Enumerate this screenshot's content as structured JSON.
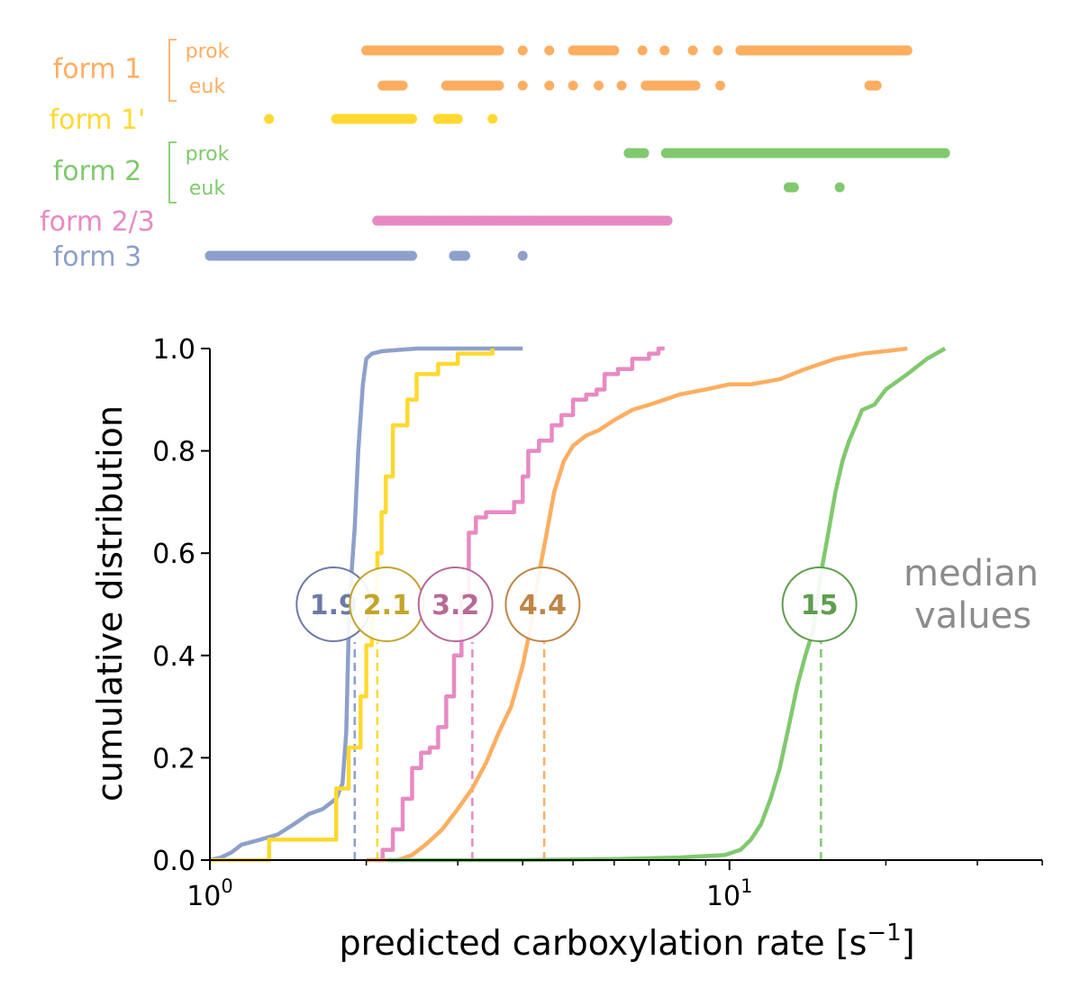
{
  "chart_data": [
    {
      "type": "scatter",
      "panel": "strip",
      "rows": [
        {
          "label": "form 1",
          "sublabel": "prok",
          "color": "#fdae61",
          "x": [
            2.0,
            2.1,
            2.2,
            2.3,
            2.4,
            2.6,
            2.8,
            3.0,
            3.3,
            3.6,
            4.0,
            4.5,
            5.0,
            5.5,
            6.0,
            6.8,
            7.5,
            8.5,
            9.5,
            10.5,
            11.5,
            12.5,
            13.5,
            14.5,
            15.5,
            17.0,
            18.5,
            20.0,
            21.0,
            22.0
          ]
        },
        {
          "label": "",
          "sublabel": "euk",
          "color": "#fdae61",
          "x": [
            2.15,
            2.25,
            2.35,
            2.85,
            3.0,
            3.1,
            3.3,
            3.6,
            4.0,
            4.5,
            5.0,
            5.6,
            6.2,
            6.9,
            7.5,
            8.1,
            8.6,
            9.6,
            18.6,
            19.2
          ]
        },
        {
          "label": "form 1'",
          "sublabel": "",
          "color": "#ffd92f",
          "x": [
            1.3,
            1.75,
            1.82,
            1.88,
            1.94,
            2.0,
            2.06,
            2.12,
            2.18,
            2.23,
            2.35,
            2.45,
            2.75,
            3.0,
            3.5
          ]
        },
        {
          "label": "form 2",
          "sublabel": "prok",
          "color": "#80c96e",
          "x": [
            6.4,
            6.7,
            6.85,
            7.55,
            7.8,
            8.3,
            8.8,
            9.0,
            9.3,
            9.8,
            10.5,
            11.5,
            12.5,
            13.5,
            14.5,
            15.5,
            17.0,
            18.5,
            20.0,
            22.0,
            24.0,
            26.0
          ]
        },
        {
          "label": "",
          "sublabel": "euk",
          "color": "#80c96e",
          "x": [
            13.0,
            13.3,
            16.3
          ]
        },
        {
          "label": "form 2/3",
          "sublabel": "",
          "color": "#e78ac3",
          "x": [
            2.1,
            2.2,
            2.3,
            2.4,
            2.5,
            2.6,
            2.7,
            2.8,
            2.9,
            3.0,
            3.1,
            3.2,
            3.3,
            3.4,
            3.55,
            3.8,
            3.95,
            4.05,
            4.3,
            4.55,
            4.75,
            4.95,
            5.2,
            5.45,
            5.8,
            6.2,
            6.8,
            7.3,
            7.6
          ]
        },
        {
          "label": "form 3",
          "sublabel": "",
          "color": "#8da0cb",
          "x": [
            1.0,
            1.03,
            1.1,
            1.15,
            1.2,
            1.26,
            1.32,
            1.38,
            1.45,
            1.52,
            1.6,
            1.68,
            1.75,
            1.82,
            1.9,
            1.97,
            2.04,
            2.1,
            2.25,
            2.35,
            2.45,
            2.95,
            3.1,
            4.0
          ]
        }
      ]
    },
    {
      "type": "line",
      "panel": "ecdf",
      "xlabel": "predicted carboxylation rate [s",
      "xlabel_sup": "−1",
      "xlabel_close": "]",
      "ylabel": "cumulative distribution",
      "xscale": "log",
      "xlim": [
        1,
        40
      ],
      "ylim": [
        0,
        1
      ],
      "x_major_ticks": [
        {
          "value": 1,
          "base": "10",
          "exp": "0"
        },
        {
          "value": 10,
          "base": "10",
          "exp": "1"
        }
      ],
      "x_minor_ticks": [
        2,
        3,
        4,
        5,
        6,
        7,
        8,
        9,
        20,
        30,
        40
      ],
      "y_ticks": [
        {
          "value": 0,
          "label": "0.0"
        },
        {
          "value": 0.2,
          "label": "0.2"
        },
        {
          "value": 0.4,
          "label": "0.4"
        },
        {
          "value": 0.6,
          "label": "0.6"
        },
        {
          "value": 0.8,
          "label": "0.8"
        },
        {
          "value": 1.0,
          "label": "1.0"
        }
      ],
      "annotation": {
        "line1": "median",
        "line2": "values",
        "color": "#8c8c8c"
      },
      "series": [
        {
          "color": "#8da0cb",
          "median": 1.9,
          "median_label": "1.9",
          "badge_x": 1.73,
          "text_color": "#6c7aa6",
          "step": false,
          "x": [
            1.0,
            1.05,
            1.1,
            1.15,
            1.25,
            1.35,
            1.45,
            1.55,
            1.65,
            1.75,
            1.8,
            1.83,
            1.85,
            1.87,
            1.9,
            1.93,
            1.97,
            2.0,
            2.05,
            2.15,
            2.5,
            3.0,
            4.0
          ],
          "y": [
            0.0,
            0.005,
            0.015,
            0.03,
            0.04,
            0.05,
            0.07,
            0.09,
            0.1,
            0.12,
            0.15,
            0.25,
            0.45,
            0.55,
            0.65,
            0.8,
            0.93,
            0.98,
            0.99,
            0.995,
            1.0,
            1.0,
            1.0
          ]
        },
        {
          "color": "#ffd92f",
          "median": 2.1,
          "median_label": "2.1",
          "badge_x": 2.19,
          "text_color": "#c2a52b",
          "step": true,
          "x": [
            1.0,
            1.3,
            1.75,
            1.85,
            1.95,
            2.0,
            2.05,
            2.1,
            2.14,
            2.18,
            2.25,
            2.4,
            2.5,
            2.75,
            3.0,
            3.5
          ],
          "y": [
            0.0,
            0.04,
            0.14,
            0.22,
            0.32,
            0.42,
            0.52,
            0.6,
            0.68,
            0.75,
            0.85,
            0.9,
            0.95,
            0.97,
            0.99,
            1.0
          ]
        },
        {
          "color": "#e78ac3",
          "median": 3.2,
          "median_label": "3.2",
          "badge_x": 2.97,
          "text_color": "#b66a97",
          "step": true,
          "x": [
            2.07,
            2.15,
            2.25,
            2.35,
            2.45,
            2.55,
            2.65,
            2.75,
            2.85,
            2.95,
            3.05,
            3.15,
            3.25,
            3.4,
            3.6,
            3.85,
            4.0,
            4.1,
            4.3,
            4.55,
            4.75,
            5.0,
            5.3,
            5.55,
            5.75,
            6.1,
            6.5,
            7.0,
            7.3,
            7.5
          ],
          "y": [
            0.0,
            0.02,
            0.06,
            0.12,
            0.18,
            0.21,
            0.22,
            0.26,
            0.32,
            0.4,
            0.52,
            0.64,
            0.67,
            0.68,
            0.68,
            0.7,
            0.75,
            0.8,
            0.82,
            0.85,
            0.87,
            0.9,
            0.91,
            0.92,
            0.95,
            0.96,
            0.98,
            0.99,
            1.0,
            1.0
          ]
        },
        {
          "color": "#fdae61",
          "median": 4.4,
          "median_label": "4.4",
          "badge_x": 4.37,
          "text_color": "#c08545",
          "step": false,
          "x": [
            2.0,
            2.3,
            2.45,
            2.6,
            2.8,
            3.0,
            3.2,
            3.4,
            3.6,
            3.8,
            4.0,
            4.15,
            4.3,
            4.45,
            4.6,
            4.8,
            5.0,
            5.3,
            5.6,
            6.0,
            6.5,
            7.0,
            7.5,
            8.0,
            9.0,
            10.0,
            11.0,
            12.5,
            14.0,
            16.0,
            18.0,
            20.0,
            22.0
          ],
          "y": [
            0.0,
            0.0,
            0.01,
            0.03,
            0.06,
            0.1,
            0.14,
            0.19,
            0.25,
            0.3,
            0.38,
            0.46,
            0.56,
            0.64,
            0.72,
            0.78,
            0.81,
            0.83,
            0.84,
            0.86,
            0.88,
            0.89,
            0.9,
            0.91,
            0.92,
            0.93,
            0.93,
            0.94,
            0.96,
            0.98,
            0.99,
            0.995,
            1.0
          ]
        },
        {
          "color": "#80c96e",
          "median": 15,
          "median_label": "15",
          "badge_x": 14.9,
          "text_color": "#5f9e4f",
          "step": false,
          "x": [
            2.2,
            4.0,
            6.0,
            8.0,
            9.0,
            9.8,
            10.5,
            11.0,
            11.5,
            12.0,
            12.5,
            13.0,
            13.5,
            14.0,
            14.5,
            15.0,
            15.5,
            16.0,
            16.5,
            17.0,
            17.5,
            18.0,
            19.0,
            20.0,
            22.0,
            24.0,
            26.0
          ],
          "y": [
            0.0,
            0.0,
            0.002,
            0.005,
            0.008,
            0.01,
            0.02,
            0.04,
            0.07,
            0.12,
            0.18,
            0.26,
            0.34,
            0.4,
            0.45,
            0.56,
            0.64,
            0.72,
            0.78,
            0.82,
            0.85,
            0.88,
            0.89,
            0.92,
            0.95,
            0.98,
            1.0
          ]
        }
      ]
    }
  ]
}
